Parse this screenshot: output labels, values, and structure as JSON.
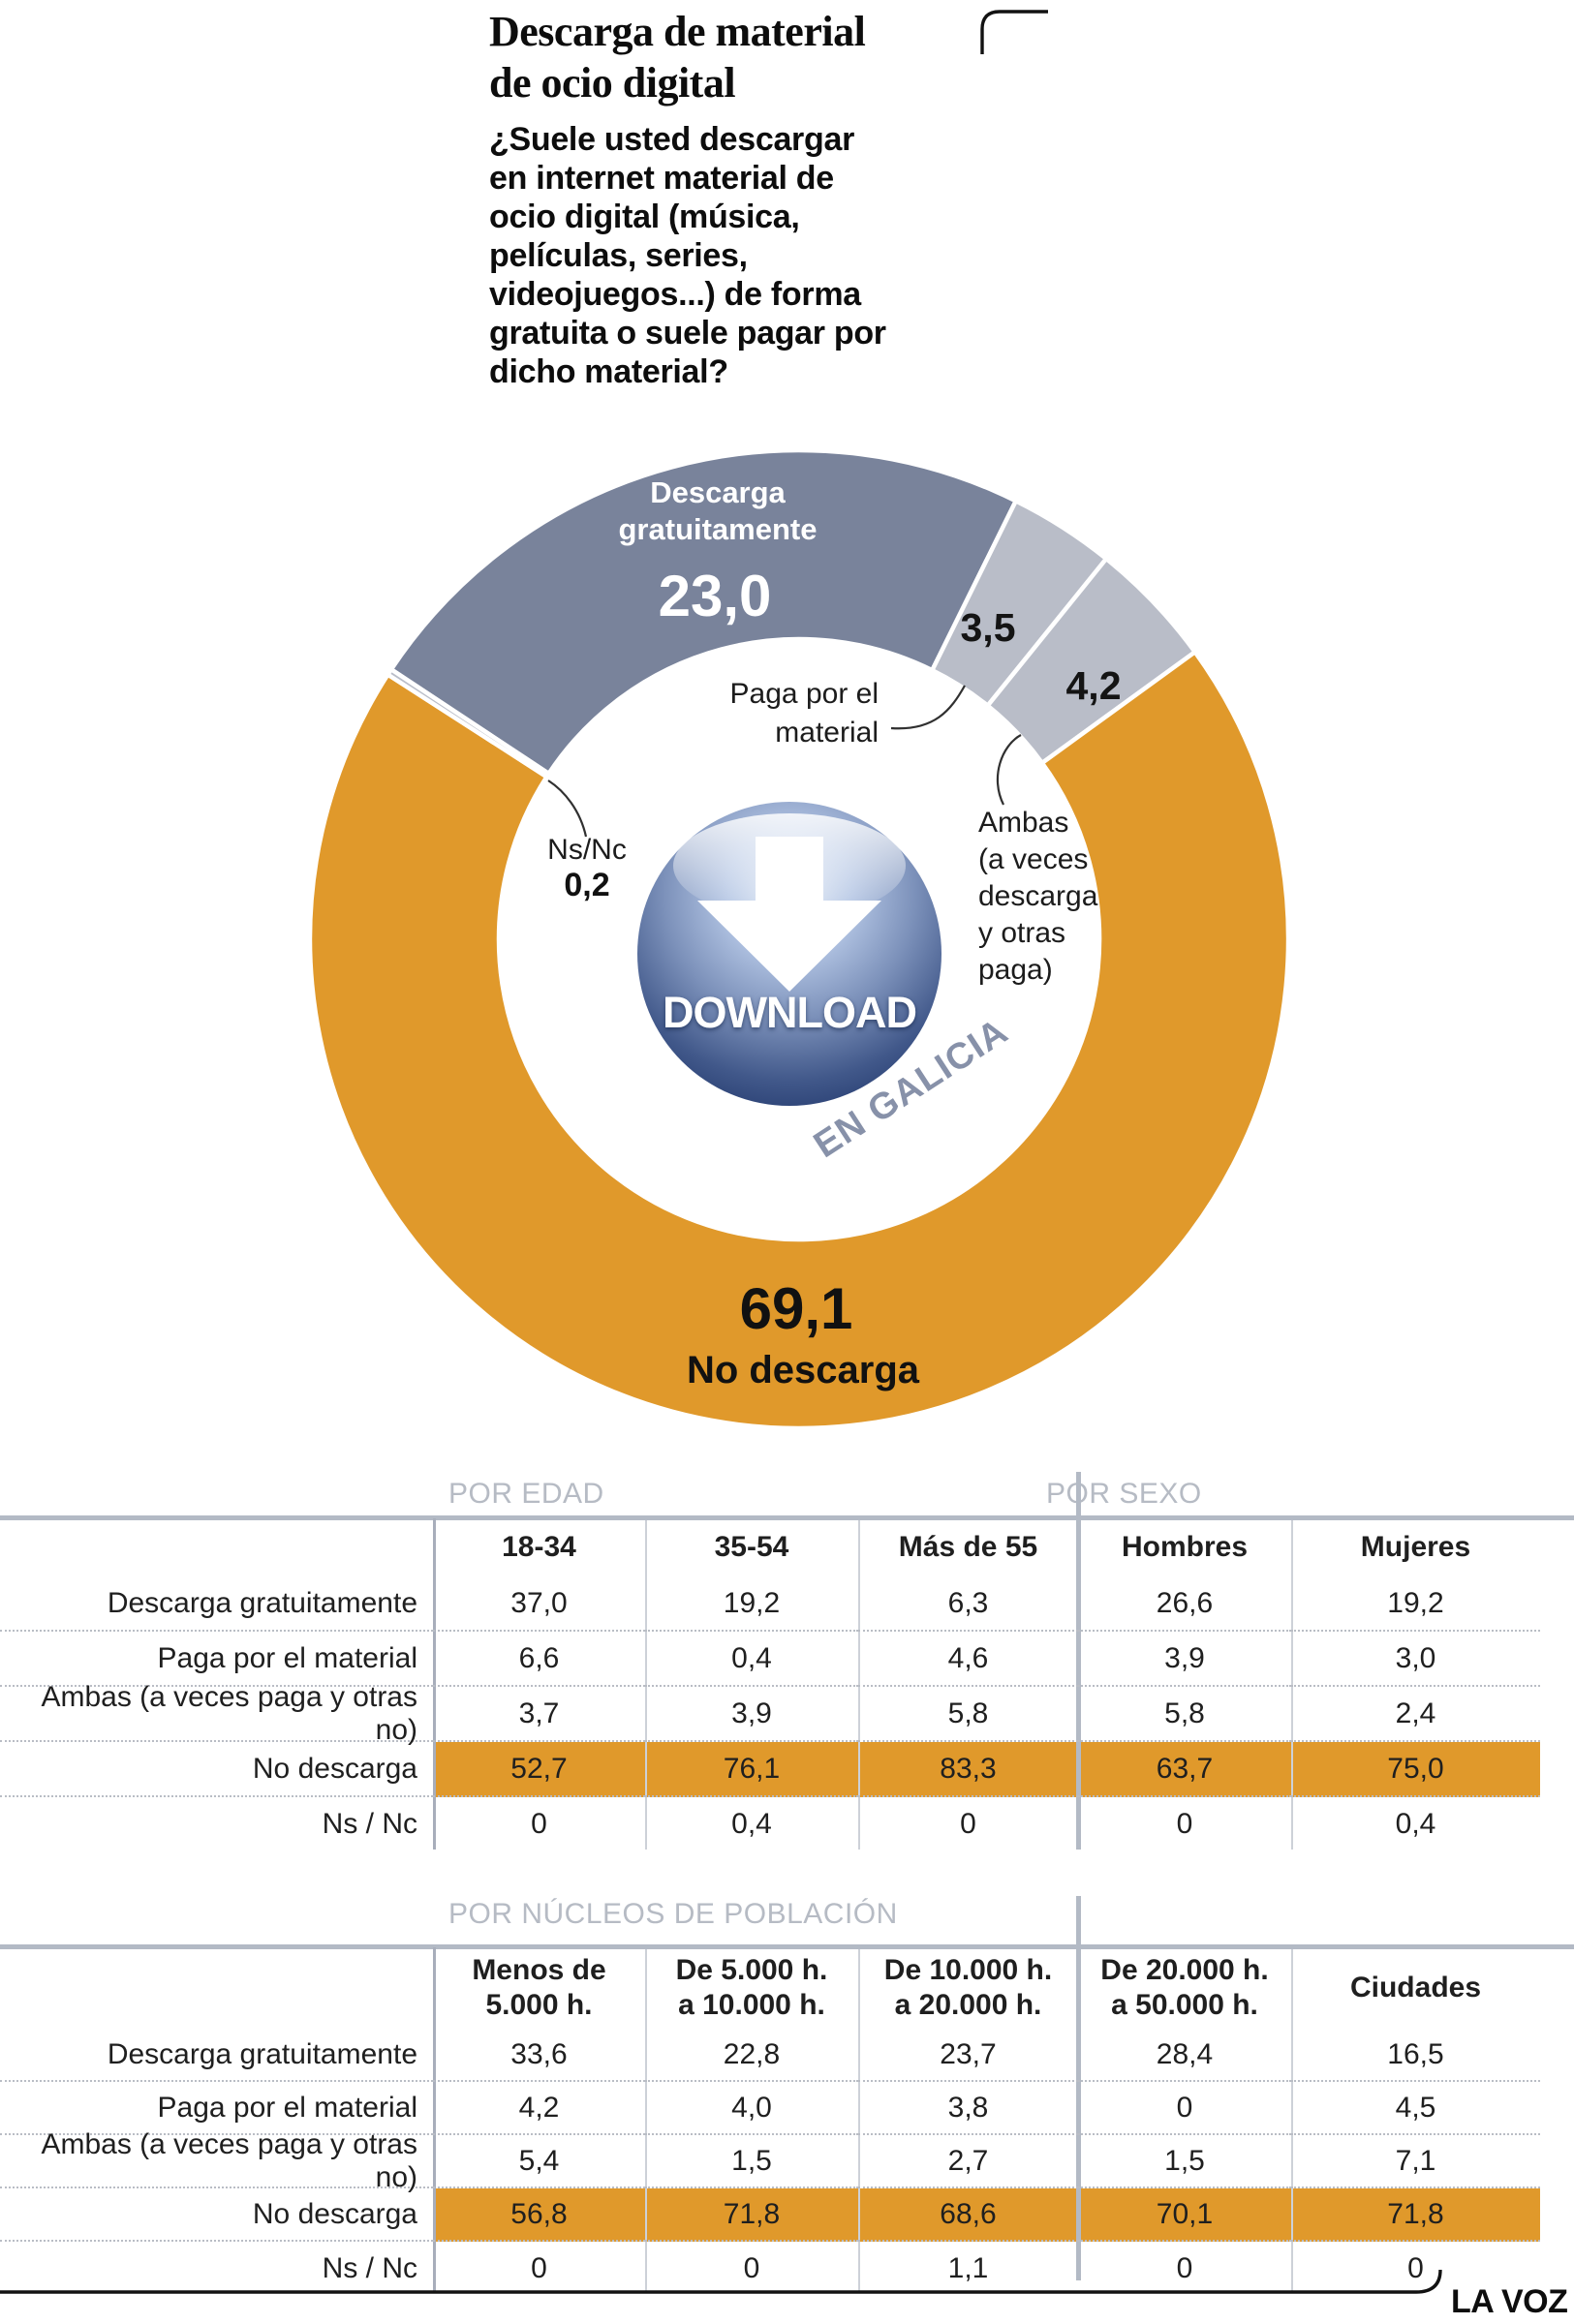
{
  "header": {
    "title": "Descarga de material\nde ocio digital",
    "question": "¿Suele usted descargar\nen internet material de\nocio digital (música,\npelículas, series,\nvideojuegos...) de forma\ngratuita o suele pagar por\ndicho material?"
  },
  "colors": {
    "dark_slice": "#79839B",
    "light_slice": "#B9BDC8",
    "orange": "#E0992B",
    "section_label_gray": "#B6BBC4",
    "rule_gray": "#B3BAC5"
  },
  "chart_data": [
    {
      "type": "pie",
      "title": "Descarga de material de ocio digital",
      "subtitle": "EN GALICIA",
      "units": "%",
      "start_angle_deg": -56.5,
      "legend_position": "on-chart",
      "segments": [
        {
          "label": "Descarga gratuitamente",
          "value": 23.0,
          "display": "23,0",
          "color": "#79839B"
        },
        {
          "label": "Paga por el material",
          "value": 3.5,
          "display": "3,5",
          "color": "#B9BDC8"
        },
        {
          "label": "Ambas (a veces descarga y otras paga)",
          "value": 4.2,
          "display": "4,2",
          "color": "#B9BDC8"
        },
        {
          "label": "No descarga",
          "value": 69.1,
          "display": "69,1",
          "color": "#E0992B"
        },
        {
          "label": "Ns/Nc",
          "value": 0.2,
          "display": "0,2",
          "color": "#B9BDC8"
        }
      ],
      "center_icon": {
        "text": "DOWNLOAD",
        "caption": "EN GALICIA"
      }
    },
    {
      "type": "table",
      "section_labels": [
        "POR EDAD",
        "POR SEXO"
      ],
      "columns": [
        "18-34",
        "35-54",
        "Más de 55",
        "Hombres",
        "Mujeres"
      ],
      "rows": [
        {
          "label": "Descarga gratuitamente",
          "values": [
            "37,0",
            "19,2",
            "6,3",
            "26,6",
            "19,2"
          ]
        },
        {
          "label": "Paga por el material",
          "values": [
            "6,6",
            "0,4",
            "4,6",
            "3,9",
            "3,0"
          ]
        },
        {
          "label": "Ambas (a veces paga y otras no)",
          "values": [
            "3,7",
            "3,9",
            "5,8",
            "5,8",
            "2,4"
          ]
        },
        {
          "label": "No descarga",
          "values": [
            "52,7",
            "76,1",
            "83,3",
            "63,7",
            "75,0"
          ],
          "highlight": true
        },
        {
          "label": "Ns / Nc",
          "values": [
            "0",
            "0,4",
            "0",
            "0",
            "0,4"
          ]
        }
      ]
    },
    {
      "type": "table",
      "section_labels": [
        "POR NÚCLEOS DE POBLACIÓN"
      ],
      "columns": [
        "Menos de\n5.000 h.",
        "De 5.000 h.\na 10.000 h.",
        "De 10.000 h.\na 20.000 h.",
        "De 20.000 h.\na 50.000 h.",
        "Ciudades"
      ],
      "rows": [
        {
          "label": "Descarga gratuitamente",
          "values": [
            "33,6",
            "22,8",
            "23,7",
            "28,4",
            "16,5"
          ]
        },
        {
          "label": "Paga por el material",
          "values": [
            "4,2",
            "4,0",
            "3,8",
            "0",
            "4,5"
          ]
        },
        {
          "label": "Ambas (a veces paga y otras no)",
          "values": [
            "5,4",
            "1,5",
            "2,7",
            "1,5",
            "7,1"
          ]
        },
        {
          "label": "No descarga",
          "values": [
            "56,8",
            "71,8",
            "68,6",
            "70,1",
            "71,8"
          ],
          "highlight": true
        },
        {
          "label": "Ns / Nc",
          "values": [
            "0",
            "0",
            "1,1",
            "0",
            "0"
          ]
        }
      ]
    }
  ],
  "donut_annotations": {
    "segment0_name": "Descarga\ngratuitamente",
    "segment1_name": "Paga por el\nmaterial",
    "segment2_name": "Ambas\n(a veces\ndescarga\ny otras\npaga)",
    "segment3_name": "No descarga",
    "segment4_name": "Ns/Nc"
  },
  "footer": {
    "brand": "LA VOZ"
  }
}
